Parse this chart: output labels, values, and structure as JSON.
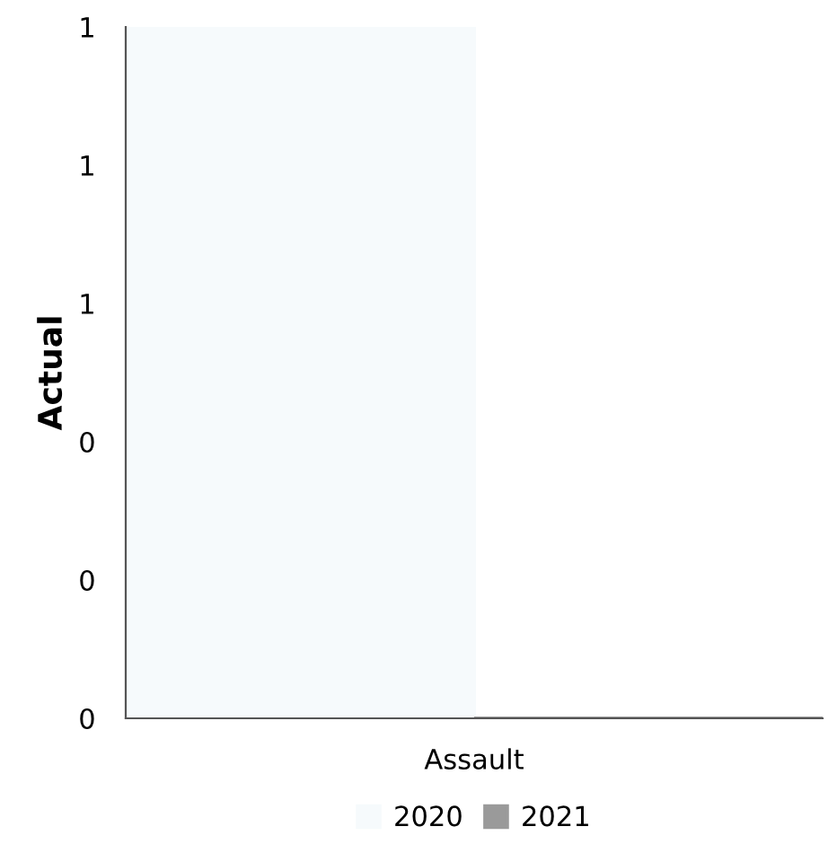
{
  "chart_data": {
    "type": "bar",
    "ylabel": "Actual",
    "categories": [
      "Assault"
    ],
    "series": [
      {
        "name": "2020",
        "color": "#f6fafc",
        "values": [
          1
        ]
      },
      {
        "name": "2021",
        "color": "#9a9a9a",
        "values": [
          0
        ]
      }
    ],
    "ylim": [
      0,
      1
    ],
    "yticks": [
      0,
      {
        "value": 0.2,
        "label": "0"
      },
      {
        "value": 0.4,
        "label": "0"
      },
      {
        "value": 0.6,
        "label": "1"
      },
      {
        "value": 0.8,
        "label": "1"
      },
      1
    ],
    "grid": false,
    "legend": "bottom"
  }
}
